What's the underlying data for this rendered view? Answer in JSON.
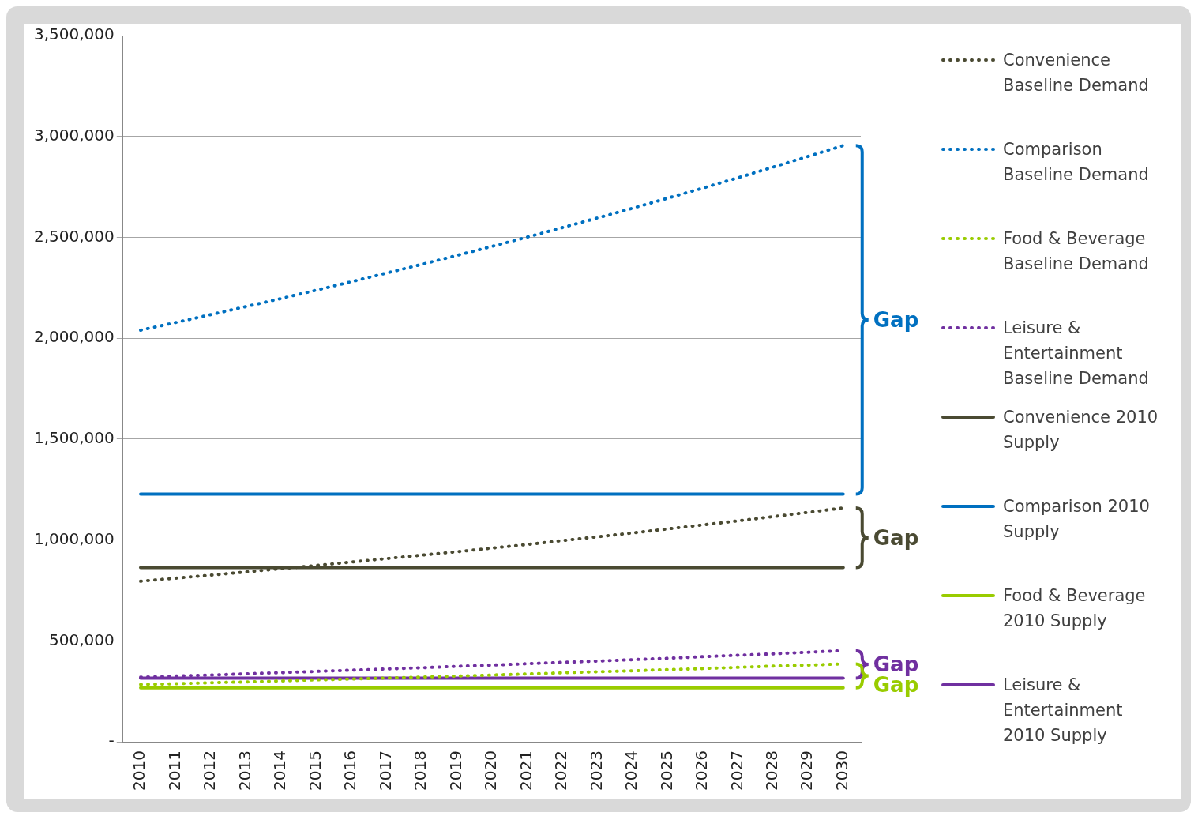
{
  "chart_data": {
    "type": "line",
    "categories": [
      "2010",
      "2011",
      "2012",
      "2013",
      "2014",
      "2015",
      "2016",
      "2017",
      "2018",
      "2019",
      "2020",
      "2021",
      "2022",
      "2023",
      "2024",
      "2025",
      "2026",
      "2027",
      "2028",
      "2029",
      "2030"
    ],
    "ylim": [
      0,
      3500000
    ],
    "yticks": [
      {
        "value": 0,
        "label": "-"
      },
      {
        "value": 500000,
        "label": "500,000"
      },
      {
        "value": 1000000,
        "label": "1,000,000"
      },
      {
        "value": 1500000,
        "label": "1,500,000"
      },
      {
        "value": 2000000,
        "label": "2,000,000"
      },
      {
        "value": 2500000,
        "label": "2,500,000"
      },
      {
        "value": 3000000,
        "label": "3,000,000"
      },
      {
        "value": 3500000,
        "label": "3,500,000"
      }
    ],
    "grid": "y",
    "legend": "right",
    "marker": "none",
    "series": [
      {
        "name": "Convenience Baseline Demand",
        "color": "#4a4a32",
        "line_style": "dotted",
        "values": [
          796000,
          811000,
          826000,
          842000,
          858000,
          874000,
          891000,
          908000,
          925000,
          942000,
          960000,
          978000,
          997000,
          1016000,
          1035000,
          1055000,
          1075000,
          1095000,
          1116000,
          1137000,
          1159000
        ]
      },
      {
        "name": "Comparison Baseline Demand",
        "color": "#0070c0",
        "line_style": "dotted",
        "values": [
          2040000,
          2078000,
          2117000,
          2157000,
          2197000,
          2238000,
          2280000,
          2323000,
          2366000,
          2410000,
          2455000,
          2501000,
          2548000,
          2596000,
          2644000,
          2694000,
          2744000,
          2795000,
          2848000,
          2901000,
          2955000
        ]
      },
      {
        "name": "Food & Beverage Baseline Demand",
        "color": "#99cc00",
        "line_style": "dotted",
        "values": [
          284000,
          288000,
          293000,
          297000,
          302000,
          307000,
          311000,
          316000,
          321000,
          326000,
          331000,
          336000,
          342000,
          347000,
          352000,
          358000,
          363000,
          369000,
          375000,
          380000,
          386000
        ]
      },
      {
        "name": "Leisure & Entertainment Baseline Demand",
        "color": "#7030a0",
        "line_style": "dotted",
        "values": [
          320000,
          326000,
          331000,
          337000,
          343000,
          349000,
          355000,
          361000,
          367000,
          374000,
          380000,
          387000,
          394000,
          400000,
          407000,
          414000,
          422000,
          429000,
          436000,
          444000,
          452000
        ]
      },
      {
        "name": "Convenience 2010 Supply",
        "color": "#4a4a32",
        "line_style": "solid",
        "values": [
          864000,
          864000,
          864000,
          864000,
          864000,
          864000,
          864000,
          864000,
          864000,
          864000,
          864000,
          864000,
          864000,
          864000,
          864000,
          864000,
          864000,
          864000,
          864000,
          864000,
          864000
        ]
      },
      {
        "name": "Comparison 2010 Supply",
        "color": "#0070c0",
        "line_style": "solid",
        "values": [
          1228000,
          1228000,
          1228000,
          1228000,
          1228000,
          1228000,
          1228000,
          1228000,
          1228000,
          1228000,
          1228000,
          1228000,
          1228000,
          1228000,
          1228000,
          1228000,
          1228000,
          1228000,
          1228000,
          1228000,
          1228000
        ]
      },
      {
        "name": "Food & Beverage 2010 Supply",
        "color": "#99cc00",
        "line_style": "solid",
        "values": [
          268000,
          268000,
          268000,
          268000,
          268000,
          268000,
          268000,
          268000,
          268000,
          268000,
          268000,
          268000,
          268000,
          268000,
          268000,
          268000,
          268000,
          268000,
          268000,
          268000,
          268000
        ]
      },
      {
        "name": "Leisure & Entertainment 2010 Supply",
        "color": "#7030a0",
        "line_style": "solid",
        "values": [
          316000,
          316000,
          316000,
          316000,
          316000,
          316000,
          316000,
          316000,
          316000,
          316000,
          316000,
          316000,
          316000,
          316000,
          316000,
          316000,
          316000,
          316000,
          316000,
          316000,
          316000
        ]
      }
    ],
    "annotations": [
      "Gap",
      "Gap",
      "Gap",
      "Gap"
    ]
  }
}
